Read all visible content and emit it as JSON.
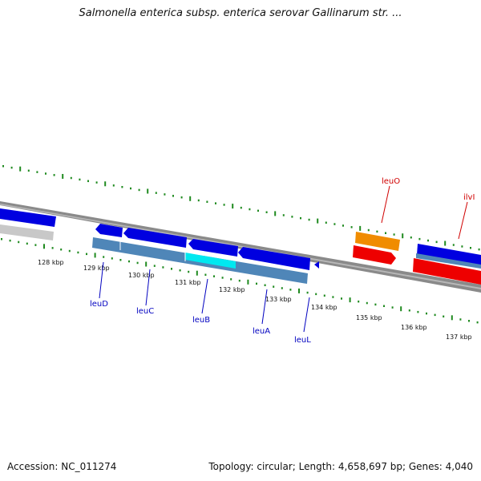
{
  "title": "Salmonella enterica subsp. enterica serovar Gallinarum str. ...",
  "footer": {
    "accession": "Accession: NC_011274",
    "summary": "Topology: circular; Length: 4,658,697 bp; Genes: 4,040"
  },
  "scale": {
    "unit": "kbp",
    "ticks": [
      "128 kbp",
      "129 kbp",
      "130 kbp",
      "131 kbp",
      "132 kbp",
      "133 kbp",
      "134 kbp",
      "135 kbp",
      "136 kbp",
      "137 kbp"
    ]
  },
  "colors": {
    "tick": "#1f8a1f",
    "backbone": "#808080",
    "forward_cds": "#0000e0",
    "operon_block": "#4f86b8",
    "highlight": "#00e8f0",
    "gene_label_blue": "#0000c0",
    "gene_label_red": "#d00000",
    "red_cds": "#ee0000",
    "orange_cds": "#f08c00",
    "grey_cds": "#c8c8c8"
  },
  "genes": [
    {
      "label": "leuD",
      "color": "blue"
    },
    {
      "label": "leuC",
      "color": "blue"
    },
    {
      "label": "leuB",
      "color": "blue"
    },
    {
      "label": "leuA",
      "color": "blue"
    },
    {
      "label": "leuL",
      "color": "blue"
    },
    {
      "label": "leuO",
      "color": "red"
    },
    {
      "label": "ilvI",
      "color": "red"
    }
  ]
}
